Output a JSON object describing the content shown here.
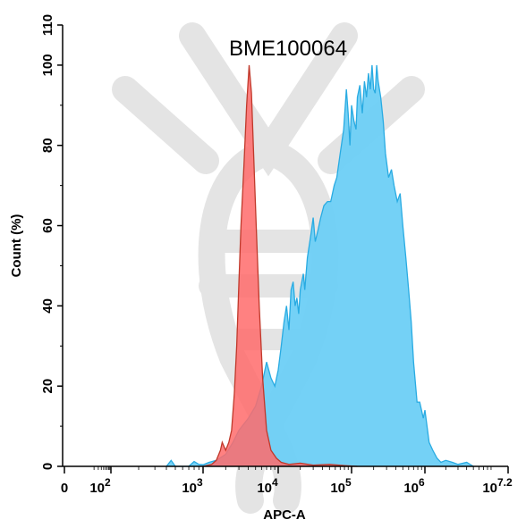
{
  "chart_data": {
    "type": "area",
    "title": "BME100064",
    "xlabel": "APC-A",
    "ylabel": "Count (%)",
    "x_scale": "log10 (biexponential near 0)",
    "xlim": [
      0,
      15848932
    ],
    "ylim": [
      0,
      110
    ],
    "grid": false,
    "legend": "none",
    "y_ticks": [
      "0",
      "20",
      "40",
      "60",
      "80",
      "100",
      "110"
    ],
    "x_ticks": [
      {
        "base": "0",
        "exp": ""
      },
      {
        "base": "10",
        "exp": "2"
      },
      {
        "base": "10",
        "exp": "3"
      },
      {
        "base": "10",
        "exp": "4"
      },
      {
        "base": "10",
        "exp": "5"
      },
      {
        "base": "10",
        "exp": "6"
      },
      {
        "base": "10",
        "exp": "7.2"
      }
    ],
    "series": [
      {
        "color": "#ff6b6b",
        "fill": "#ff6b6b",
        "x": [
          1000,
          1300,
          1500,
          1700,
          1800,
          2000,
          2200,
          2400,
          2600,
          2800,
          3000,
          3200,
          3500,
          3800,
          4100,
          4400,
          4700,
          5100,
          5600,
          6200,
          7000,
          8000,
          9500,
          11000,
          14000,
          20000,
          30000,
          50000,
          80000,
          120000
        ],
        "y": [
          0,
          0.5,
          1.5,
          4,
          6,
          4,
          6,
          9,
          18,
          30,
          46,
          60,
          75,
          90,
          100,
          93,
          78,
          60,
          40,
          22,
          9,
          4,
          2,
          1,
          0.5,
          0.8,
          0.3,
          0.5,
          0.2,
          0
        ]
      },
      {
        "color": "#29abe2",
        "fill": "#6dcff6",
        "x": [
          400,
          450,
          500,
          700,
          800,
          900,
          1000,
          1200,
          1500,
          2000,
          2500,
          3000,
          4000,
          5000,
          6000,
          7000,
          8000,
          9000,
          10000,
          11000,
          12000,
          13000,
          14000,
          15000,
          16000,
          17000,
          18000,
          19000,
          20000,
          22000,
          23000,
          25000,
          28000,
          30000,
          32000,
          35000,
          38000,
          42000,
          47000,
          52000,
          58000,
          63000,
          70000,
          78000,
          85000,
          90000,
          95000,
          100000,
          108000,
          115000,
          120000,
          130000,
          140000,
          150000,
          160000,
          170000,
          180000,
          190000,
          200000,
          210000,
          220000,
          230000,
          250000,
          270000,
          290000,
          320000,
          350000,
          380000,
          420000,
          460000,
          500000,
          550000,
          600000,
          650000,
          700000,
          780000,
          850000,
          950000,
          1000000,
          1150000,
          1300000,
          1500000,
          1700000,
          2000000,
          2500000,
          3000000,
          4000000,
          5000000
        ],
        "y": [
          0,
          1.5,
          0,
          0,
          1.2,
          0.5,
          0.4,
          1,
          1.5,
          3,
          6,
          9,
          12,
          15,
          20,
          26,
          22,
          20,
          24,
          30,
          36,
          40,
          34,
          44,
          46,
          40,
          42,
          38,
          44,
          48,
          44,
          52,
          58,
          62,
          56,
          59,
          62,
          65,
          66,
          66,
          70,
          72,
          78,
          84,
          94,
          88,
          80,
          90,
          86,
          84,
          92,
          95,
          88,
          96,
          92,
          98,
          94,
          100,
          94,
          93,
          100,
          96,
          92,
          86,
          78,
          72,
          74,
          70,
          66,
          68,
          60,
          52,
          44,
          36,
          26,
          16,
          16,
          12,
          14,
          6,
          4,
          2,
          1,
          1.5,
          1,
          0.5,
          1,
          0
        ]
      }
    ]
  }
}
